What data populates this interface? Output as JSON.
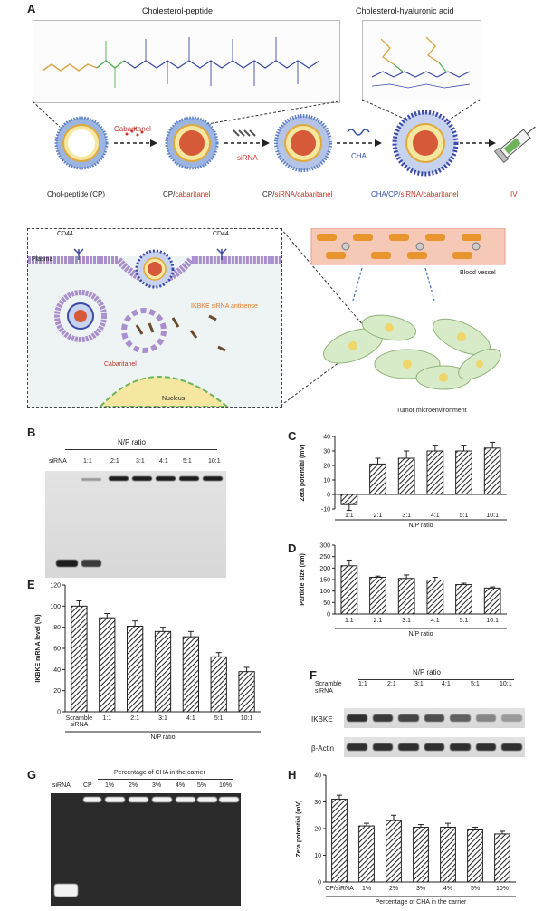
{
  "panelA": {
    "label": "A",
    "chol_peptide_title": "Cholesterol-peptide",
    "cha_title": "Cholesterol-hyaluronic acid",
    "steps": [
      {
        "prefix": "Chol-peptide (CP)",
        "suffix": ""
      },
      {
        "prefix": "CP/",
        "suffix": "cabaritanel"
      },
      {
        "prefix": "CP/",
        "mid": "siRNA",
        "suffix": "/cabaritanel"
      },
      {
        "prefix": "CHA/CP/",
        "mid": "siRNA",
        "suffix": "/cabaritanel"
      }
    ],
    "arrow1": "Cabaritanel",
    "arrow2": "siRNA",
    "arrow3": "CHA",
    "iv": "IV",
    "cd44_left": "CD44",
    "cd44_right": "CD44",
    "plasma": "Plasma",
    "ikbke": "IKBKE siRNA antisense",
    "cab_cell": "Cabaritanel",
    "nucleus": "Nucleus",
    "blood_vessel": "Blood vessel",
    "tumor_micro": "Tumor microenvironment"
  },
  "panelB": {
    "label": "B",
    "title": "N/P ratio",
    "lanes": [
      "siRNA",
      "1:1",
      "2:1",
      "3:1",
      "4:1",
      "5:1",
      "10:1"
    ]
  },
  "panelF": {
    "label": "F",
    "title": "N/P ratio",
    "lanes": [
      "Scramble siRNA",
      "1:1",
      "2:1",
      "3:1",
      "4:1",
      "5:1",
      "10:1"
    ],
    "rows": [
      "IKBKE",
      "β-Actin"
    ],
    "ikbke_intensity": [
      0.9,
      0.85,
      0.8,
      0.75,
      0.65,
      0.45,
      0.35
    ]
  },
  "panelG": {
    "label": "G",
    "title": "Percentage of CHA in the carrier",
    "lanes": [
      "siRNA",
      "CP",
      "1%",
      "2%",
      "3%",
      "4%",
      "5%",
      "10%"
    ]
  },
  "chart_data": [
    {
      "panel": "C",
      "type": "bar",
      "categories": [
        "1:1",
        "2:1",
        "3:1",
        "4:1",
        "5:1",
        "10:1"
      ],
      "values": [
        -7,
        21,
        25,
        30,
        30,
        32
      ],
      "errors": [
        4,
        4,
        5,
        4,
        4,
        4
      ],
      "xlabel": "N/P ratio",
      "ylabel": "Zeta potential (mV)",
      "ylim": [
        -10,
        40
      ],
      "yticks": [
        -10,
        0,
        10,
        20,
        30,
        40
      ]
    },
    {
      "panel": "D",
      "type": "bar",
      "categories": [
        "1:1",
        "2:1",
        "3:1",
        "4:1",
        "5:1",
        "10:1"
      ],
      "values": [
        210,
        160,
        155,
        148,
        128,
        113
      ],
      "errors": [
        25,
        5,
        15,
        12,
        6,
        5
      ],
      "xlabel": "N/P ratio",
      "ylabel": "Particle size (nm)",
      "ylim": [
        0,
        300
      ],
      "yticks": [
        0,
        50,
        100,
        150,
        200,
        250,
        300
      ]
    },
    {
      "panel": "E",
      "type": "bar",
      "categories": [
        "Scramble siRNA",
        "1:1",
        "2:1",
        "3:1",
        "4:1",
        "5:1",
        "10:1"
      ],
      "values": [
        100,
        89,
        81,
        76,
        71,
        52,
        38
      ],
      "errors": [
        5,
        4,
        5,
        4,
        5,
        4,
        4
      ],
      "xlabel": "N/P ratio",
      "ylabel": "IKBKE mRNA level (%)",
      "ylim": [
        0,
        120
      ],
      "yticks": [
        0,
        20,
        40,
        60,
        80,
        100,
        120
      ]
    },
    {
      "panel": "H",
      "type": "bar",
      "categories": [
        "CP/siRNA",
        "1%",
        "2%",
        "3%",
        "4%",
        "5%",
        "10%"
      ],
      "values": [
        31,
        21,
        23,
        20.5,
        20.5,
        19.5,
        18
      ],
      "errors": [
        1.5,
        1,
        2,
        1,
        1.5,
        1,
        1
      ],
      "xlabel": "Percentage of CHA in the carrier",
      "ylabel": "Zeta potential (mV)",
      "ylim": [
        0,
        40
      ],
      "yticks": [
        0,
        10,
        20,
        30,
        40
      ]
    }
  ]
}
